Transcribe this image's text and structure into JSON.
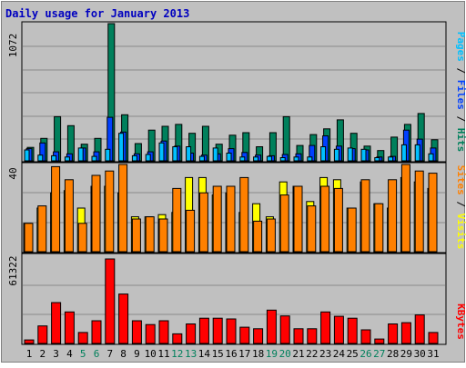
{
  "chart_data": {
    "type": "bar",
    "title": "Daily usage for January 2013",
    "categories": [
      "1",
      "2",
      "3",
      "4",
      "5",
      "6",
      "7",
      "8",
      "9",
      "10",
      "11",
      "12",
      "13",
      "14",
      "15",
      "16",
      "17",
      "18",
      "19",
      "20",
      "21",
      "22",
      "23",
      "24",
      "25",
      "26",
      "27",
      "28",
      "29",
      "30",
      "31"
    ],
    "weekend_days": [
      "5",
      "6",
      "12",
      "13",
      "19",
      "20",
      "26",
      "27"
    ],
    "panels": {
      "traffic": {
        "ymax_label": "1072",
        "ymax": 1072,
        "label_parts": [
          "Pages",
          " / ",
          "Files",
          " / ",
          "Hits"
        ],
        "series": [
          {
            "name": "Hits",
            "color": "#00805c",
            "values": [
              105,
              175,
              345,
              275,
              130,
              175,
              1072,
              360,
              135,
              240,
              270,
              285,
              215,
              270,
              130,
              200,
              220,
              110,
              220,
              345,
              120,
              205,
              250,
              320,
              215,
              115,
              80,
              185,
              285,
              370,
              165
            ]
          },
          {
            "name": "Files",
            "color": "#0040ff",
            "values": [
              95,
              140,
              70,
              55,
              100,
              70,
              340,
              225,
              55,
              70,
              155,
              115,
              60,
              45,
              55,
              95,
              65,
              45,
              40,
              50,
              55,
              120,
              195,
              115,
              95,
              85,
              30,
              35,
              240,
              170,
              100
            ]
          },
          {
            "name": "Pages",
            "color": "#00c0ff",
            "values": [
              85,
              45,
              40,
              30,
              100,
              35,
              90,
              215,
              40,
              50,
              140,
              110,
              110,
              35,
              100,
              60,
              30,
              30,
              35,
              25,
              30,
              30,
              110,
              90,
              100,
              90,
              25,
              30,
              125,
              125,
              55
            ]
          }
        ]
      },
      "visits": {
        "ymax_label": "40",
        "ymax": 40,
        "label_parts": [
          "Sites",
          " / ",
          "Visits"
        ],
        "series": [
          {
            "name": "Visits",
            "color": "#ffff00",
            "values": [
              13,
              20,
              27,
              28,
              20,
              30,
              30,
              27,
              16,
              16,
              17,
              18,
              34,
              34,
              26,
              27,
              18,
              22,
              16,
              32,
              30,
              23,
              34,
              33,
              20,
              32,
              22,
              20,
              34,
              32,
              29
            ]
          },
          {
            "name": "Sites",
            "color": "#ff8000",
            "values": [
              13,
              21,
              39,
              33,
              13,
              35,
              37,
              40,
              15,
              16,
              15,
              29,
              19,
              27,
              30,
              30,
              34,
              14,
              15,
              26,
              30,
              21,
              30,
              29,
              20,
              33,
              22,
              33,
              40,
              37,
              36
            ]
          }
        ]
      },
      "kbytes": {
        "ymax_label": "61322",
        "ymax": 61322,
        "label": "KBytes",
        "series": [
          {
            "name": "KBytes",
            "color": "#ff0000",
            "values": [
              2600,
              12700,
              29700,
              22900,
              8000,
              16500,
              61322,
              35900,
              16500,
              13700,
              16500,
              7000,
              14200,
              18300,
              18300,
              17800,
              11800,
              10700,
              24200,
              20000,
              10700,
              10700,
              22900,
              19700,
              18300,
              9900,
              3200,
              14200,
              15100,
              20700,
              8000
            ]
          }
        ]
      }
    }
  }
}
